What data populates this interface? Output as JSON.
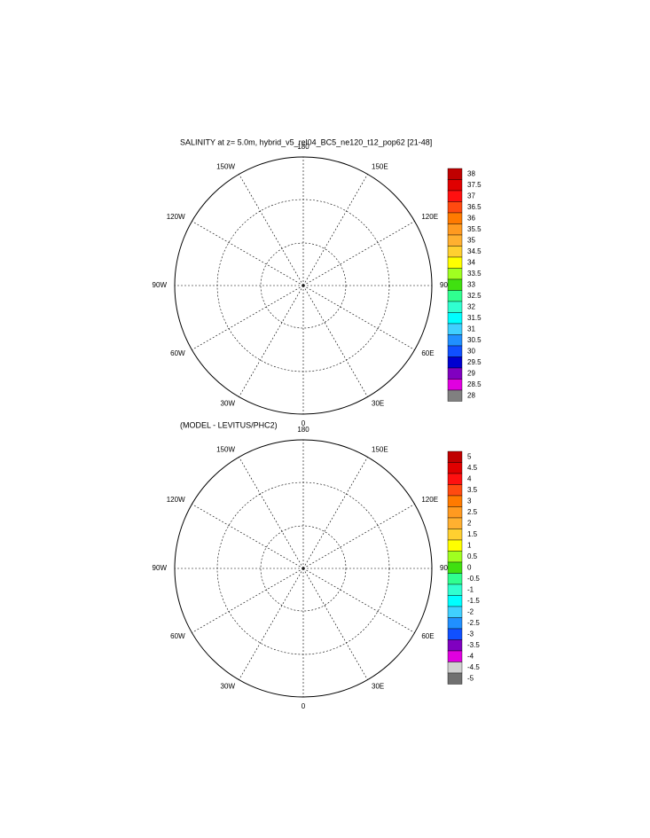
{
  "panels": [
    {
      "title": "SALINITY at z=   5.0m, hybrid_v5_rel04_BC5_ne120_t12_pop62 [21-48]",
      "lon_labels": [
        "180",
        "150E",
        "120E",
        "90E",
        "60E",
        "30E",
        "0",
        "30W",
        "60W",
        "90W",
        "120W",
        "150W"
      ],
      "colorbar": {
        "labels": [
          "38",
          "37.5",
          "37",
          "36.5",
          "36",
          "35.5",
          "35",
          "34.5",
          "34",
          "33.5",
          "33",
          "32.5",
          "32",
          "31.5",
          "31",
          "30.5",
          "30",
          "29.5",
          "29",
          "28.5",
          "28"
        ],
        "colors": [
          "#c00000",
          "#e00000",
          "#ff1010",
          "#ff4a10",
          "#ff7a00",
          "#ff9a20",
          "#ffb030",
          "#ffd030",
          "#ffff00",
          "#a0ff20",
          "#40e010",
          "#30ff90",
          "#30ffd0",
          "#00ffff",
          "#40d0ff",
          "#2090ff",
          "#1050ff",
          "#0000d0",
          "#8000c0",
          "#e000e0",
          "#808080"
        ]
      }
    },
    {
      "title": "(MODEL - LEVITUS/PHC2)",
      "lon_labels": [
        "180",
        "150E",
        "120E",
        "90E",
        "60E",
        "30E",
        "0",
        "30W",
        "60W",
        "90W",
        "120W",
        "150W"
      ],
      "colorbar": {
        "labels": [
          "5",
          "4.5",
          "4",
          "3.5",
          "3",
          "2.5",
          "2",
          "1.5",
          "1",
          "0.5",
          "0",
          "-0.5",
          "-1",
          "-1.5",
          "-2",
          "-2.5",
          "-3",
          "-3.5",
          "-4",
          "-4.5",
          "-5"
        ],
        "colors": [
          "#c00000",
          "#e00000",
          "#ff1010",
          "#ff4a10",
          "#ff7a00",
          "#ff9a20",
          "#ffb030",
          "#ffd030",
          "#ffff00",
          "#a0ff20",
          "#40e010",
          "#30ff90",
          "#30ffd0",
          "#00ffff",
          "#40d0ff",
          "#2090ff",
          "#1050ff",
          "#8000c0",
          "#e000e0",
          "#d0d0d0",
          "#707070"
        ]
      }
    }
  ]
}
